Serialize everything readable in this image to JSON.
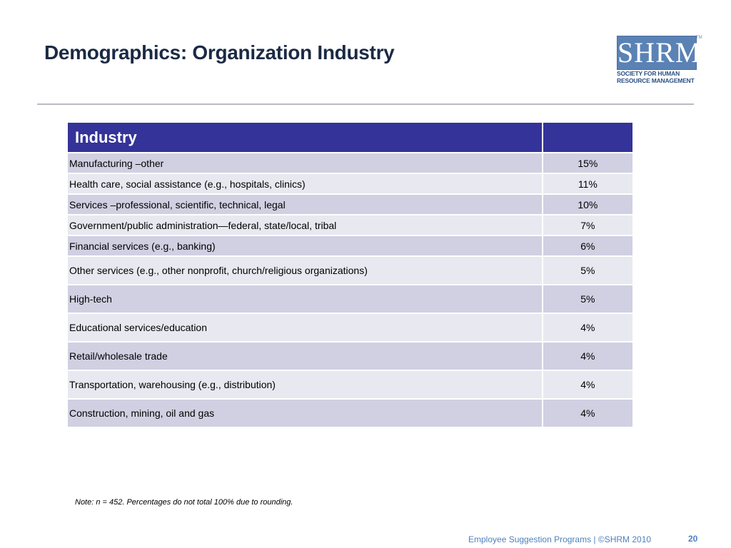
{
  "slide": {
    "title": "Demographics: Organization Industry",
    "logo": {
      "letters": "SHRM",
      "tm": "TM",
      "line1": "SOCIETY FOR HUMAN",
      "line2": "RESOURCE MANAGEMENT",
      "box_color": "#5a82b5"
    },
    "table": {
      "header_label": "Industry",
      "header_value": "",
      "header_color": "#343399",
      "rows": [
        {
          "label": "Manufacturing –other",
          "value": "15%"
        },
        {
          "label": "Health care, social assistance (e.g., hospitals, clinics)",
          "value": "11%"
        },
        {
          "label": "Services –professional, scientific, technical, legal",
          "value": "10%"
        },
        {
          "label": "Government/public administration—federal, state/local, tribal",
          "value": "7%"
        },
        {
          "label": "Financial services (e.g., banking)",
          "value": "6%"
        },
        {
          "label": "Other services (e.g., other nonprofit, church/religious organizations)",
          "value": "5%"
        },
        {
          "label": "High-tech",
          "value": "5%"
        },
        {
          "label": "Educational services/education",
          "value": "4%"
        },
        {
          "label": "Retail/wholesale trade",
          "value": "4%"
        },
        {
          "label": "Transportation, warehousing (e.g., distribution)",
          "value": "4%"
        },
        {
          "label": "Construction, mining, oil and gas",
          "value": "4%"
        }
      ]
    },
    "note": "Note: n = 452. Percentages do not total 100% due to rounding.",
    "footer": "Employee Suggestion Programs | ©SHRM 2010",
    "page_number": "20"
  }
}
